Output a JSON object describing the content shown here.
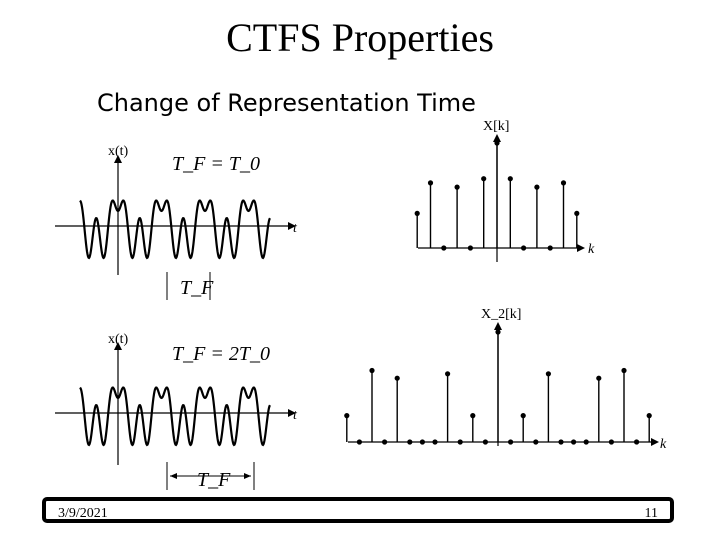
{
  "slide": {
    "title": "CTFS Properties",
    "subtitle": "Change of Representation Time",
    "date": "3/9/2021",
    "page": "11"
  },
  "plots": {
    "signal_top": {
      "ylabel": "x(t)",
      "xlabel": "t",
      "formula": "T_F = T_0",
      "span_label": "T_F"
    },
    "signal_bottom": {
      "ylabel": "x(t)",
      "xlabel": "t",
      "formula": "T_F = 2T_0",
      "span_label": "T_F"
    },
    "spectrum_top": {
      "ylabel": "X[k]",
      "xlabel": "k",
      "values": [
        0.33,
        0.62,
        0.0,
        0.58,
        0.0,
        0.66,
        1.0,
        0.66,
        0.0,
        0.58,
        0.0,
        0.62,
        0.33
      ]
    },
    "spectrum_bottom": {
      "ylabel": "X_2[k]",
      "xlabel": "k",
      "values": [
        0.24,
        0.0,
        0.65,
        0.0,
        0.58,
        0.0,
        0.0,
        0.0,
        0.62,
        0.0,
        0.24,
        0.0,
        1.0,
        0.0,
        0.24,
        0.0,
        0.62,
        0.0,
        0.0,
        0.0,
        0.58,
        0.0,
        0.65,
        0.0,
        0.24
      ]
    }
  }
}
